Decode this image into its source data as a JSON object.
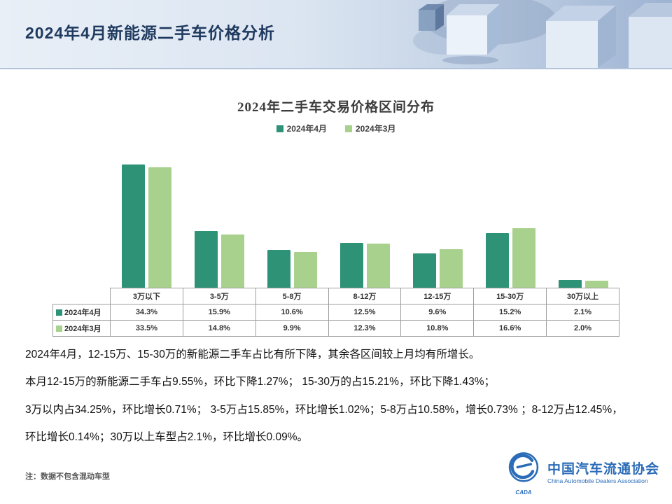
{
  "header": {
    "title": "2024年4月新能源二手车价格分析"
  },
  "chart_data": {
    "type": "bar",
    "title": "2024年二手车交易价格区间分布",
    "categories": [
      "3万以下",
      "3-5万",
      "5-8万",
      "8-12万",
      "12-15万",
      "15-30万",
      "30万以上"
    ],
    "series": [
      {
        "name": "2024年4月",
        "color": "#2e9277",
        "values": [
          34.3,
          15.9,
          10.6,
          12.5,
          9.6,
          15.2,
          2.1
        ]
      },
      {
        "name": "2024年3月",
        "color": "#a9d18e",
        "values": [
          33.5,
          14.8,
          9.9,
          12.3,
          10.8,
          16.6,
          2.0
        ]
      }
    ],
    "ylim": [
      0,
      40
    ],
    "grid": false,
    "legend_position": "top"
  },
  "table": {
    "rows": [
      {
        "label": "2024年4月",
        "values": [
          "34.3%",
          "15.9%",
          "10.6%",
          "12.5%",
          "9.6%",
          "15.2%",
          "2.1%"
        ]
      },
      {
        "label": "2024年3月",
        "values": [
          "33.5%",
          "14.8%",
          "9.9%",
          "12.3%",
          "10.8%",
          "16.6%",
          "2.0%"
        ]
      }
    ]
  },
  "body": {
    "paragraphs": [
      "2024年4月，12-15万、15-30万的新能源二手车占比有所下降，其余各区间较上月均有所增长。",
      "本月12-15万的新能源二手车占9.55%，环比下降1.27%；  15-30万的占15.21%，环比下降1.43%；",
      "3万以内占34.25%，环比增长0.71%；  3-5万占15.85%，环比增长1.02%；5-8万占10.58%，增长0.73% ；8-12万占12.45%，",
      "环比增长0.14%；30万以上车型占2.1%，环比增长0.09%。"
    ]
  },
  "note": "注：数据不包含混动车型",
  "logo": {
    "cn": "中国汽车流通协会",
    "en": "China Automobile Dealers Association",
    "badge": "CADA"
  },
  "colors": {
    "title": "#1f3a5f",
    "accent_blue": "#2b6cb8"
  }
}
